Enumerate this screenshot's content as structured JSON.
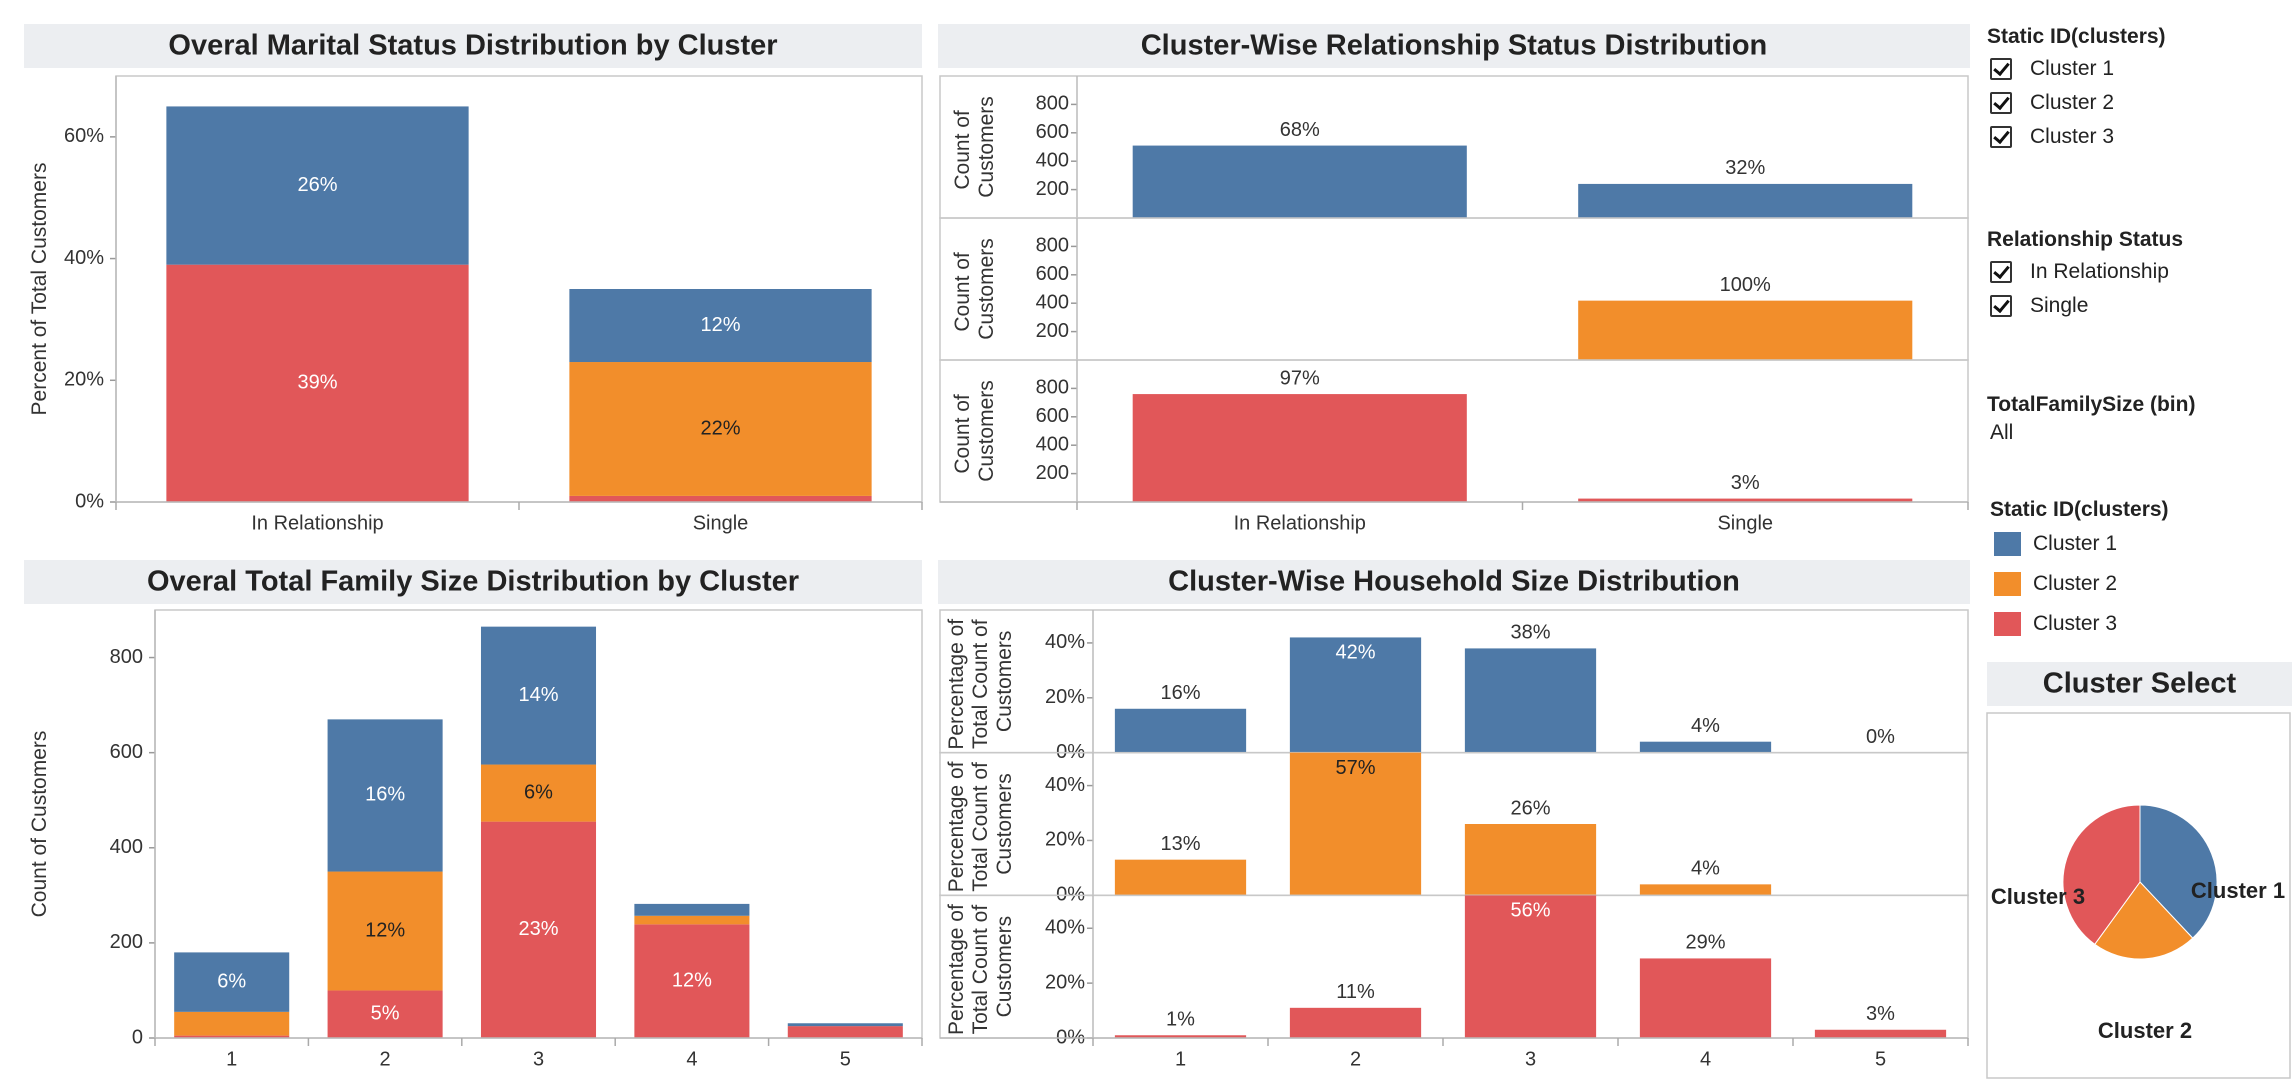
{
  "chart_data": [
    {
      "type": "bar",
      "stacked": true,
      "title": "Overal Marital Status Distribution by Cluster",
      "y_label": "Percent of Total Customers",
      "categories": [
        "In Relationship",
        "Single"
      ],
      "series": [
        {
          "color": "#4e79a7",
          "values": [
            26,
            12
          ],
          "value_labels": [
            "26%",
            "12%"
          ]
        },
        {
          "color": "#f28e2b",
          "values": [
            null,
            22
          ],
          "value_labels": [
            null,
            "22%"
          ]
        },
        {
          "color": "#e15759",
          "values": [
            39,
            1
          ],
          "value_labels": [
            "39%",
            null
          ]
        }
      ],
      "ylim": [
        0,
        70
      ],
      "yticks": [
        {
          "value": 0,
          "label": "0%"
        },
        {
          "value": 20,
          "label": "20%"
        },
        {
          "value": 40,
          "label": "40%"
        },
        {
          "value": 60,
          "label": "60%"
        }
      ]
    },
    {
      "type": "bar",
      "facet": "rows",
      "title": "Cluster-Wise Relationship Status Distribution",
      "y_label": "Count of Customers",
      "categories": [
        "In Relationship",
        "Single"
      ],
      "series": [
        {
          "color": "#4e79a7",
          "values": [
            510,
            240
          ],
          "value_labels": [
            "68%",
            "32%"
          ]
        },
        {
          "color": "#f28e2b",
          "values": [
            null,
            418
          ],
          "value_labels": [
            null,
            "100%"
          ]
        },
        {
          "color": "#e15759",
          "values": [
            760,
            24
          ],
          "value_labels": [
            "97%",
            "3%"
          ]
        }
      ],
      "ylim": [
        0,
        1000
      ],
      "yticks": [
        200,
        400,
        600,
        800
      ]
    },
    {
      "type": "bar",
      "stacked": true,
      "title": "Overal Total Family Size Distribution by Cluster",
      "y_label": "Count of Customers",
      "categories": [
        "1",
        "2",
        "3",
        "4",
        "5"
      ],
      "series": [
        {
          "color": "#4e79a7",
          "values": [
            125,
            320,
            290,
            25,
            6
          ],
          "value_labels": [
            "6%",
            "16%",
            "14%",
            null,
            null
          ]
        },
        {
          "color": "#f28e2b",
          "values": [
            50,
            250,
            120,
            18,
            null
          ],
          "value_labels": [
            null,
            "12%",
            "6%",
            null,
            null
          ]
        },
        {
          "color": "#e15759",
          "values": [
            5,
            100,
            455,
            239,
            25
          ],
          "value_labels": [
            null,
            "5%",
            "23%",
            "12%",
            null
          ]
        }
      ],
      "ylim": [
        0,
        900
      ],
      "yticks": [
        0,
        200,
        400,
        600,
        800
      ]
    },
    {
      "type": "bar",
      "facet": "rows",
      "title": "Cluster-Wise Household Size Distribution",
      "y_label": "Percentage of Total Count of Customers",
      "categories": [
        "1",
        "2",
        "3",
        "4",
        "5"
      ],
      "series": [
        {
          "color": "#4e79a7",
          "values": [
            16,
            42,
            38,
            4,
            0
          ],
          "value_labels": [
            "16%",
            "42%",
            "38%",
            "4%",
            "0%"
          ]
        },
        {
          "color": "#f28e2b",
          "values": [
            13,
            57,
            26,
            4,
            null
          ],
          "value_labels": [
            "13%",
            "57%",
            "26%",
            "4%",
            null
          ]
        },
        {
          "color": "#e15759",
          "values": [
            1,
            11,
            56,
            29,
            3
          ],
          "value_labels": [
            "1%",
            "11%",
            "56%",
            "29%",
            "3%"
          ]
        }
      ],
      "ylim": [
        0,
        52
      ],
      "yticks": [
        {
          "value": 0,
          "label": "0%"
        },
        {
          "value": 20,
          "label": "20%"
        },
        {
          "value": 40,
          "label": "40%"
        }
      ]
    },
    {
      "type": "pie",
      "title": "Cluster Select",
      "categories": [
        "Cluster 1",
        "Cluster 2",
        "Cluster 3"
      ],
      "values": [
        38,
        22,
        40
      ],
      "colors": [
        "#4e79a7",
        "#f28e2b",
        "#e15759"
      ]
    }
  ],
  "filters": [
    {
      "title": "Static ID(clusters)",
      "options": [
        {
          "label": "Cluster 1",
          "checked": true
        },
        {
          "label": "Cluster 2",
          "checked": true
        },
        {
          "label": "Cluster 3",
          "checked": true
        }
      ]
    },
    {
      "title": "Relationship Status",
      "options": [
        {
          "label": "In Relationship",
          "checked": true
        },
        {
          "label": "Single",
          "checked": true
        }
      ]
    },
    {
      "title": "TotalFamilySize (bin)",
      "value": "All"
    }
  ],
  "legend": {
    "title": "Static ID(clusters)",
    "items": [
      {
        "name": "Cluster 1",
        "color": "#4e79a7"
      },
      {
        "name": "Cluster 2",
        "color": "#f28e2b"
      },
      {
        "name": "Cluster 3",
        "color": "#e15759"
      }
    ]
  }
}
